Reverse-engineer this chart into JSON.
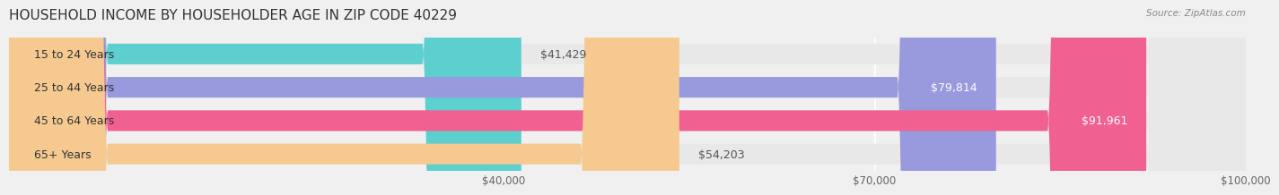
{
  "title": "HOUSEHOLD INCOME BY HOUSEHOLDER AGE IN ZIP CODE 40229",
  "source": "Source: ZipAtlas.com",
  "categories": [
    "15 to 24 Years",
    "25 to 44 Years",
    "45 to 64 Years",
    "65+ Years"
  ],
  "values": [
    41429,
    79814,
    91961,
    54203
  ],
  "bar_colors": [
    "#5ecfcf",
    "#9999dd",
    "#f06090",
    "#f5c990"
  ],
  "bar_edge_colors": [
    "#40b8b8",
    "#7777cc",
    "#e03070",
    "#e8a860"
  ],
  "value_labels": [
    "$41,429",
    "$79,814",
    "$91,961",
    "$54,203"
  ],
  "label_inside": [
    false,
    true,
    true,
    false
  ],
  "xmin": 0,
  "xmax": 100000,
  "xticks": [
    40000,
    70000,
    100000
  ],
  "xtick_labels": [
    "$40,000",
    "$70,000",
    "$100,000"
  ],
  "background_color": "#f0f0f0",
  "bar_bg_color": "#e8e8e8",
  "bar_height": 0.62,
  "title_fontsize": 11,
  "label_fontsize": 9,
  "value_fontsize": 9,
  "tick_fontsize": 8.5
}
